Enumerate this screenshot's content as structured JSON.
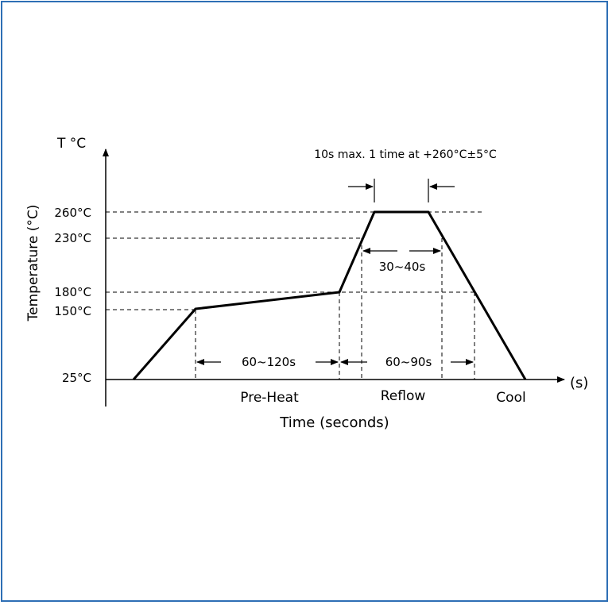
{
  "colors": {
    "border": "#2e6fb5",
    "ink": "#000000"
  },
  "diagram": {
    "y_axis_symbol": "T °C",
    "y_axis_label": "Temperature (°C)",
    "x_axis_unit": "(s)",
    "x_axis_label": "Time (seconds)",
    "temperature_levels": [
      {
        "label": "260°C",
        "value": 260
      },
      {
        "label": "230°C",
        "value": 230
      },
      {
        "label": "180°C",
        "value": 180
      },
      {
        "label": "150°C",
        "value": 150
      },
      {
        "label": "25°C",
        "value": 25
      }
    ],
    "annotations": {
      "peak_note": "10s max. 1 time at +260°C±5°C",
      "above_230": "30~40s",
      "preheat_duration": "60~120s",
      "above_180": "60~90s"
    },
    "zones": [
      "Pre-Heat",
      "Reflow",
      "Cool"
    ]
  }
}
